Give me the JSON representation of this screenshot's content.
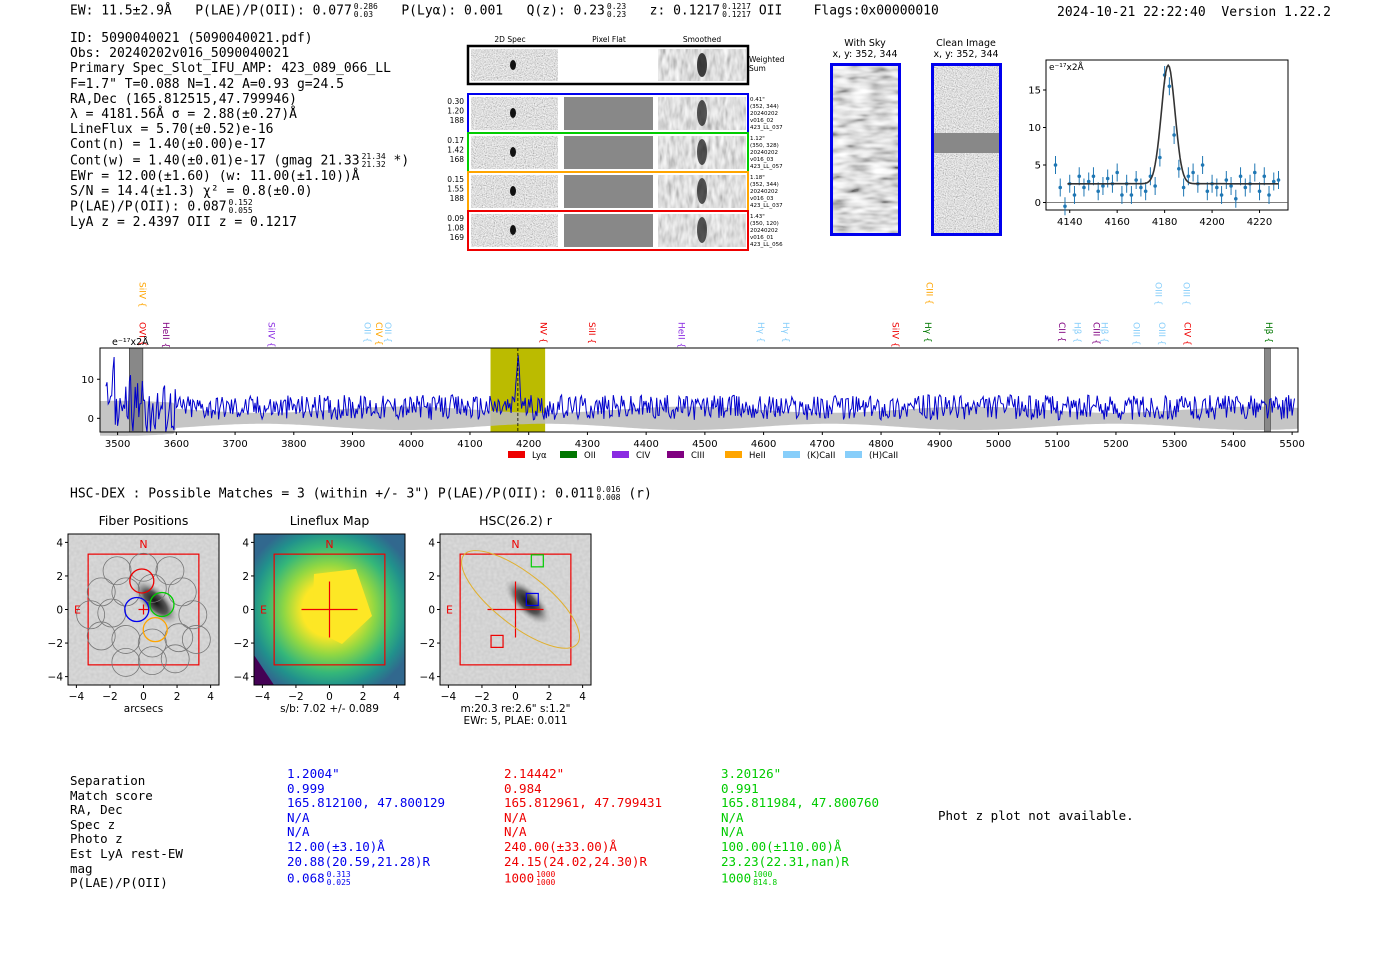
{
  "header": {
    "ew": "EW: 11.5±2.9Å",
    "plae_label": "P(LAE)/P(OII): 0.077",
    "plae_sup": "0.286",
    "plae_sub": "0.03",
    "plya": "P(Lyα): 0.001",
    "qz_label": "Q(z): 0.23",
    "qz_sup": "0.23",
    "qz_sub": "0.23",
    "z_label": "z: 0.1217",
    "z_sup": "0.1217",
    "z_sub": "0.1217",
    "z_line": "OII",
    "flags": "Flags:0x00000010",
    "timestamp": "2024-10-21 22:22:40",
    "version": "Version 1.22.2"
  },
  "info": {
    "id": "ID: 5090040021 (5090040021.pdf)",
    "obs": "Obs: 20240202v016_5090040021",
    "primary": "Primary Spec_Slot_IFU_AMP: 423_089_066_LL",
    "params": "F=1.7\"  T=0.088  N=1.42  A=0.93  g=24.5",
    "radec": "RA,Dec (165.812515,47.799946)",
    "lambda": "λ = 4181.56Å  σ = 2.88(±0.27)Å",
    "lineflux": "LineFlux = 5.70(±0.52)e-16",
    "contn": "Cont(n) = 1.40(±0.00)e-17",
    "contw": "Cont(w) = 1.40(±0.01)e-17 (gmag 21.33",
    "contw_sup": "21.34",
    "contw_sub": "21.32",
    "contw_end": "*)",
    "ewr": "EWr = 12.00(±1.60) (w: 11.00(±1.10))Å",
    "sn": "S/N = 14.4(±1.3)  χ² = 0.8(±0.0)",
    "plae": "P(LAE)/P(OII): 0.087",
    "plae_sup": "0.152",
    "plae_sub": "0.055",
    "lyaz": "LyA z = 2.4397  OII z = 0.1217"
  },
  "cutouts": {
    "col_2d": "2D Spec",
    "col_flat": "Pixel Flat",
    "col_smooth": "Smoothed",
    "weighted": "Weighted",
    "sum": "Sum",
    "rows": [
      {
        "left": [
          "0.30",
          "1.20",
          "188"
        ],
        "right": [
          "0.41\"",
          "(352, 344)",
          "20240202",
          "v016_02",
          "423_LL_037"
        ],
        "color": "#0000ee"
      },
      {
        "left": [
          "0.17",
          "1.42",
          "168"
        ],
        "right": [
          "1.12\"",
          "(350, 328)",
          "20240202",
          "v016_03",
          "423_LL_057"
        ],
        "color": "#00cc00"
      },
      {
        "left": [
          "0.15",
          "1.55",
          "188"
        ],
        "right": [
          "1.18\"",
          "(352, 344)",
          "20240202",
          "v016_03",
          "423_LL_037"
        ],
        "color": "#ffa500"
      },
      {
        "left": [
          "0.09",
          "1.08",
          "169"
        ],
        "right": [
          "1.43\"",
          "(350, 120)",
          "20240202",
          "v016_01",
          "423_LL_056"
        ],
        "color": "#ee0000"
      }
    ]
  },
  "sky": {
    "with_title": "With Sky",
    "with_coords": "x, y: 352, 344",
    "clean_title": "Clean Image",
    "clean_coords": "x, y: 352, 344"
  },
  "chart_data": [
    {
      "type": "scatter",
      "ylabel_unit": "e⁻¹⁷x2Å",
      "xlim": [
        4130,
        4232
      ],
      "ylim": [
        -1,
        19
      ],
      "xticks": [
        4140,
        4160,
        4180,
        4200,
        4220
      ],
      "yticks": [
        0,
        5,
        10,
        15
      ],
      "fit": {
        "center": 4181.5,
        "sigma": 2.88,
        "amplitude": 15.8,
        "continuum": 2.5
      },
      "x": [
        4134,
        4136,
        4138,
        4140,
        4142,
        4144,
        4146,
        4148,
        4150,
        4152,
        4154,
        4156,
        4158,
        4160,
        4162,
        4164,
        4166,
        4168,
        4170,
        4172,
        4174,
        4176,
        4178,
        4180,
        4182,
        4184,
        4186,
        4188,
        4190,
        4192,
        4194,
        4196,
        4198,
        4200,
        4202,
        4204,
        4206,
        4208,
        4210,
        4212,
        4214,
        4216,
        4218,
        4220,
        4222,
        4224,
        4226,
        4228
      ],
      "y": [
        5.0,
        2.0,
        -0.5,
        2.5,
        1.0,
        3.5,
        2.0,
        2.8,
        3.5,
        1.5,
        2.2,
        3.2,
        2.5,
        4.0,
        1.0,
        2.5,
        1.0,
        3.0,
        2.0,
        1.5,
        3.5,
        2.2,
        6.0,
        17.0,
        15.5,
        9.0,
        4.5,
        2.0,
        3.5,
        4.0,
        2.5,
        5.0,
        1.5,
        2.5,
        2.0,
        1.0,
        3.0,
        2.2,
        0.5,
        3.5,
        2.0,
        2.5,
        4.0,
        1.5,
        3.5,
        1.0,
        2.8,
        3.0
      ],
      "yerr": 1.2
    },
    {
      "type": "line",
      "ylabel_unit": "e⁻¹⁷x2Å",
      "xlim": [
        3470,
        5510
      ],
      "ylim": [
        -3.5,
        18
      ],
      "xticks": [
        3500,
        3600,
        3700,
        3800,
        3900,
        4000,
        4100,
        4200,
        4300,
        4400,
        4500,
        4600,
        4700,
        4800,
        4900,
        5000,
        5100,
        5200,
        5300,
        5400,
        5500
      ],
      "yticks": [
        0,
        10
      ],
      "highlight": [
        4135,
        4228
      ],
      "masked": [
        [
          3520,
          3543
        ],
        [
          5453,
          5463
        ]
      ],
      "peak_wavelength": 4181.56,
      "legend": [
        {
          "name": "Lyα",
          "color": "#ee0000"
        },
        {
          "name": "OII",
          "color": "#007700"
        },
        {
          "name": "CIV",
          "color": "#8a2be2"
        },
        {
          "name": "CIII",
          "color": "#800080"
        },
        {
          "name": "HeII",
          "color": "#ffa500"
        },
        {
          "name": "(K)CaII",
          "color": "#87cefa"
        },
        {
          "name": "(H)CaII",
          "color": "#87cefa"
        }
      ],
      "lines": [
        {
          "name": "SiIV",
          "w": 3532,
          "color": "#ffa500",
          "row": "top"
        },
        {
          "name": "OVI",
          "w": 3532,
          "color": "#ee0000",
          "row": "low"
        },
        {
          "name": "HeII",
          "w": 3572,
          "color": "#800080",
          "row": "low"
        },
        {
          "name": "SiIV",
          "w": 3752,
          "color": "#8a2be2",
          "row": "low"
        },
        {
          "name": "OII",
          "w": 3915,
          "color": "#87cefa",
          "row": "low"
        },
        {
          "name": "CIV",
          "w": 3935,
          "color": "#ffa500",
          "row": "low"
        },
        {
          "name": "OII",
          "w": 3950,
          "color": "#87cefa",
          "row": "low"
        },
        {
          "name": "NV",
          "w": 4215,
          "color": "#ee0000",
          "row": "low"
        },
        {
          "name": "SiII",
          "w": 4298,
          "color": "#ee0000",
          "row": "low"
        },
        {
          "name": "HeII",
          "w": 4450,
          "color": "#8a2be2",
          "row": "low"
        },
        {
          "name": "Hγ",
          "w": 4585,
          "color": "#87cefa",
          "row": "low"
        },
        {
          "name": "Hγ",
          "w": 4628,
          "color": "#87cefa",
          "row": "low"
        },
        {
          "name": "SiIV",
          "w": 4814,
          "color": "#ee0000",
          "row": "low"
        },
        {
          "name": "CIII",
          "w": 4872,
          "color": "#ffa500",
          "row": "top"
        },
        {
          "name": "Hγ",
          "w": 4870,
          "color": "#007700",
          "row": "low"
        },
        {
          "name": "CII",
          "w": 5098,
          "color": "#800080",
          "row": "low"
        },
        {
          "name": "Hβ",
          "w": 5124,
          "color": "#87cefa",
          "row": "low"
        },
        {
          "name": "CIII",
          "w": 5157,
          "color": "#800080",
          "row": "low"
        },
        {
          "name": "Hβ",
          "w": 5170,
          "color": "#87cefa",
          "row": "low"
        },
        {
          "name": "OIII",
          "w": 5225,
          "color": "#87cefa",
          "row": "low"
        },
        {
          "name": "OIII",
          "w": 5262,
          "color": "#87cefa",
          "row": "top"
        },
        {
          "name": "OIII",
          "w": 5268,
          "color": "#87cefa",
          "row": "low"
        },
        {
          "name": "OIII",
          "w": 5310,
          "color": "#87cefa",
          "row": "top"
        },
        {
          "name": "CIV",
          "w": 5312,
          "color": "#ee0000",
          "row": "low"
        },
        {
          "name": "Hβ",
          "w": 5450,
          "color": "#007700",
          "row": "low"
        }
      ]
    }
  ],
  "hsc": {
    "line_left": "HSC-DEX : Possible Matches = 3 (within +/- 3\")  P(LAE)/P(OII): 0.011",
    "sup": "0.016",
    "sub": "0.008",
    "line_end": "(r)",
    "panels": [
      {
        "title": "Fiber Positions",
        "xlabel": "arcsecs"
      },
      {
        "title": "Lineflux Map",
        "xlabel": "s/b: 7.02 +/- 0.089"
      },
      {
        "title": "HSC(26.2) r",
        "xlabel": "m:20.3   re:2.6\"   s:1.2\"",
        "xlabel2": "EWr: 5, PLAE: 0.011"
      }
    ],
    "ticks": [
      "4",
      "2",
      "0",
      "−2",
      "−4"
    ],
    "xticks": [
      "−4",
      "−2",
      "0",
      "2",
      "4"
    ],
    "n": "N",
    "e": "E"
  },
  "table": {
    "labels": [
      "Separation",
      "Match score",
      "RA, Dec",
      "Spec z",
      "Photo z",
      "Est LyA rest-EW",
      "mag",
      "P(LAE)/P(OII)"
    ],
    "cols": [
      {
        "color": "#0000ee",
        "values": [
          "1.2004\"",
          "0.999",
          "165.812100, 47.800129",
          "N/A",
          "N/A",
          "12.00(±3.10)Å",
          "20.88(20.59,21.28)R"
        ],
        "plae": "0.068",
        "sup": "0.313",
        "sub": "0.025"
      },
      {
        "color": "#ee0000",
        "values": [
          "2.14442\"",
          "0.984",
          "165.812961, 47.799431",
          "N/A",
          "N/A",
          "240.00(±33.00)Å",
          "24.15(24.02,24.30)R"
        ],
        "plae": "1000",
        "sup": "1000",
        "sub": "1000"
      },
      {
        "color": "#00cc00",
        "values": [
          "3.20126\"",
          "0.991",
          "165.811984, 47.800760",
          "N/A",
          "N/A",
          "100.00(±110.00)Å",
          "23.23(22.31,nan)R"
        ],
        "plae": "1000",
        "sup": "1000",
        "sub": "814.8"
      }
    ],
    "photz_note": "Phot z plot not available."
  },
  "colors": {
    "blue": "#0000ee",
    "green": "#00cc00",
    "orange": "#ffa500",
    "red": "#ee0000",
    "spectrum": "#0000cc",
    "band": "#bbbb00",
    "fit": "#333333"
  }
}
